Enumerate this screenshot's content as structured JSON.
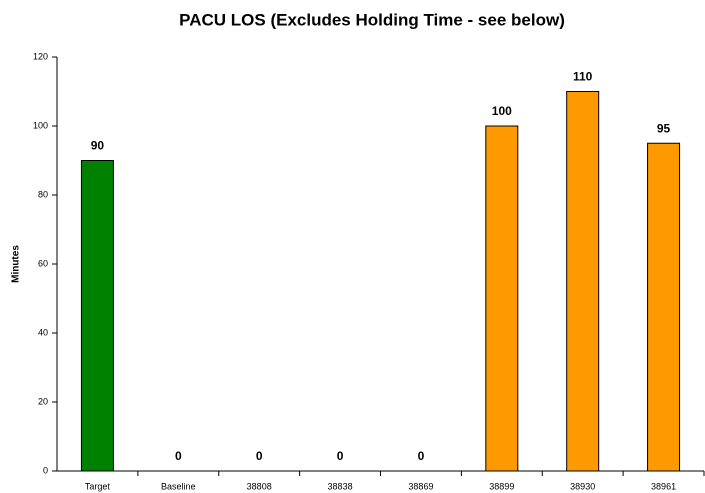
{
  "chart_data": {
    "type": "bar",
    "title": "PACU LOS (Excludes Holding Time - see below)",
    "y_label": "Minutes",
    "categories": [
      "Target",
      "Baseline",
      "38808",
      "38838",
      "38869",
      "38899",
      "38930",
      "38961"
    ],
    "values": [
      90,
      0,
      0,
      0,
      0,
      100,
      110,
      95
    ],
    "colors": [
      "#008000",
      "#ff9900",
      "#ff9900",
      "#ff9900",
      "#ff9900",
      "#ff9900",
      "#ff9900",
      "#ff9900"
    ],
    "ylim": [
      0,
      120
    ],
    "yticks": [
      0,
      20,
      40,
      60,
      80,
      100,
      120
    ],
    "grid": false
  }
}
